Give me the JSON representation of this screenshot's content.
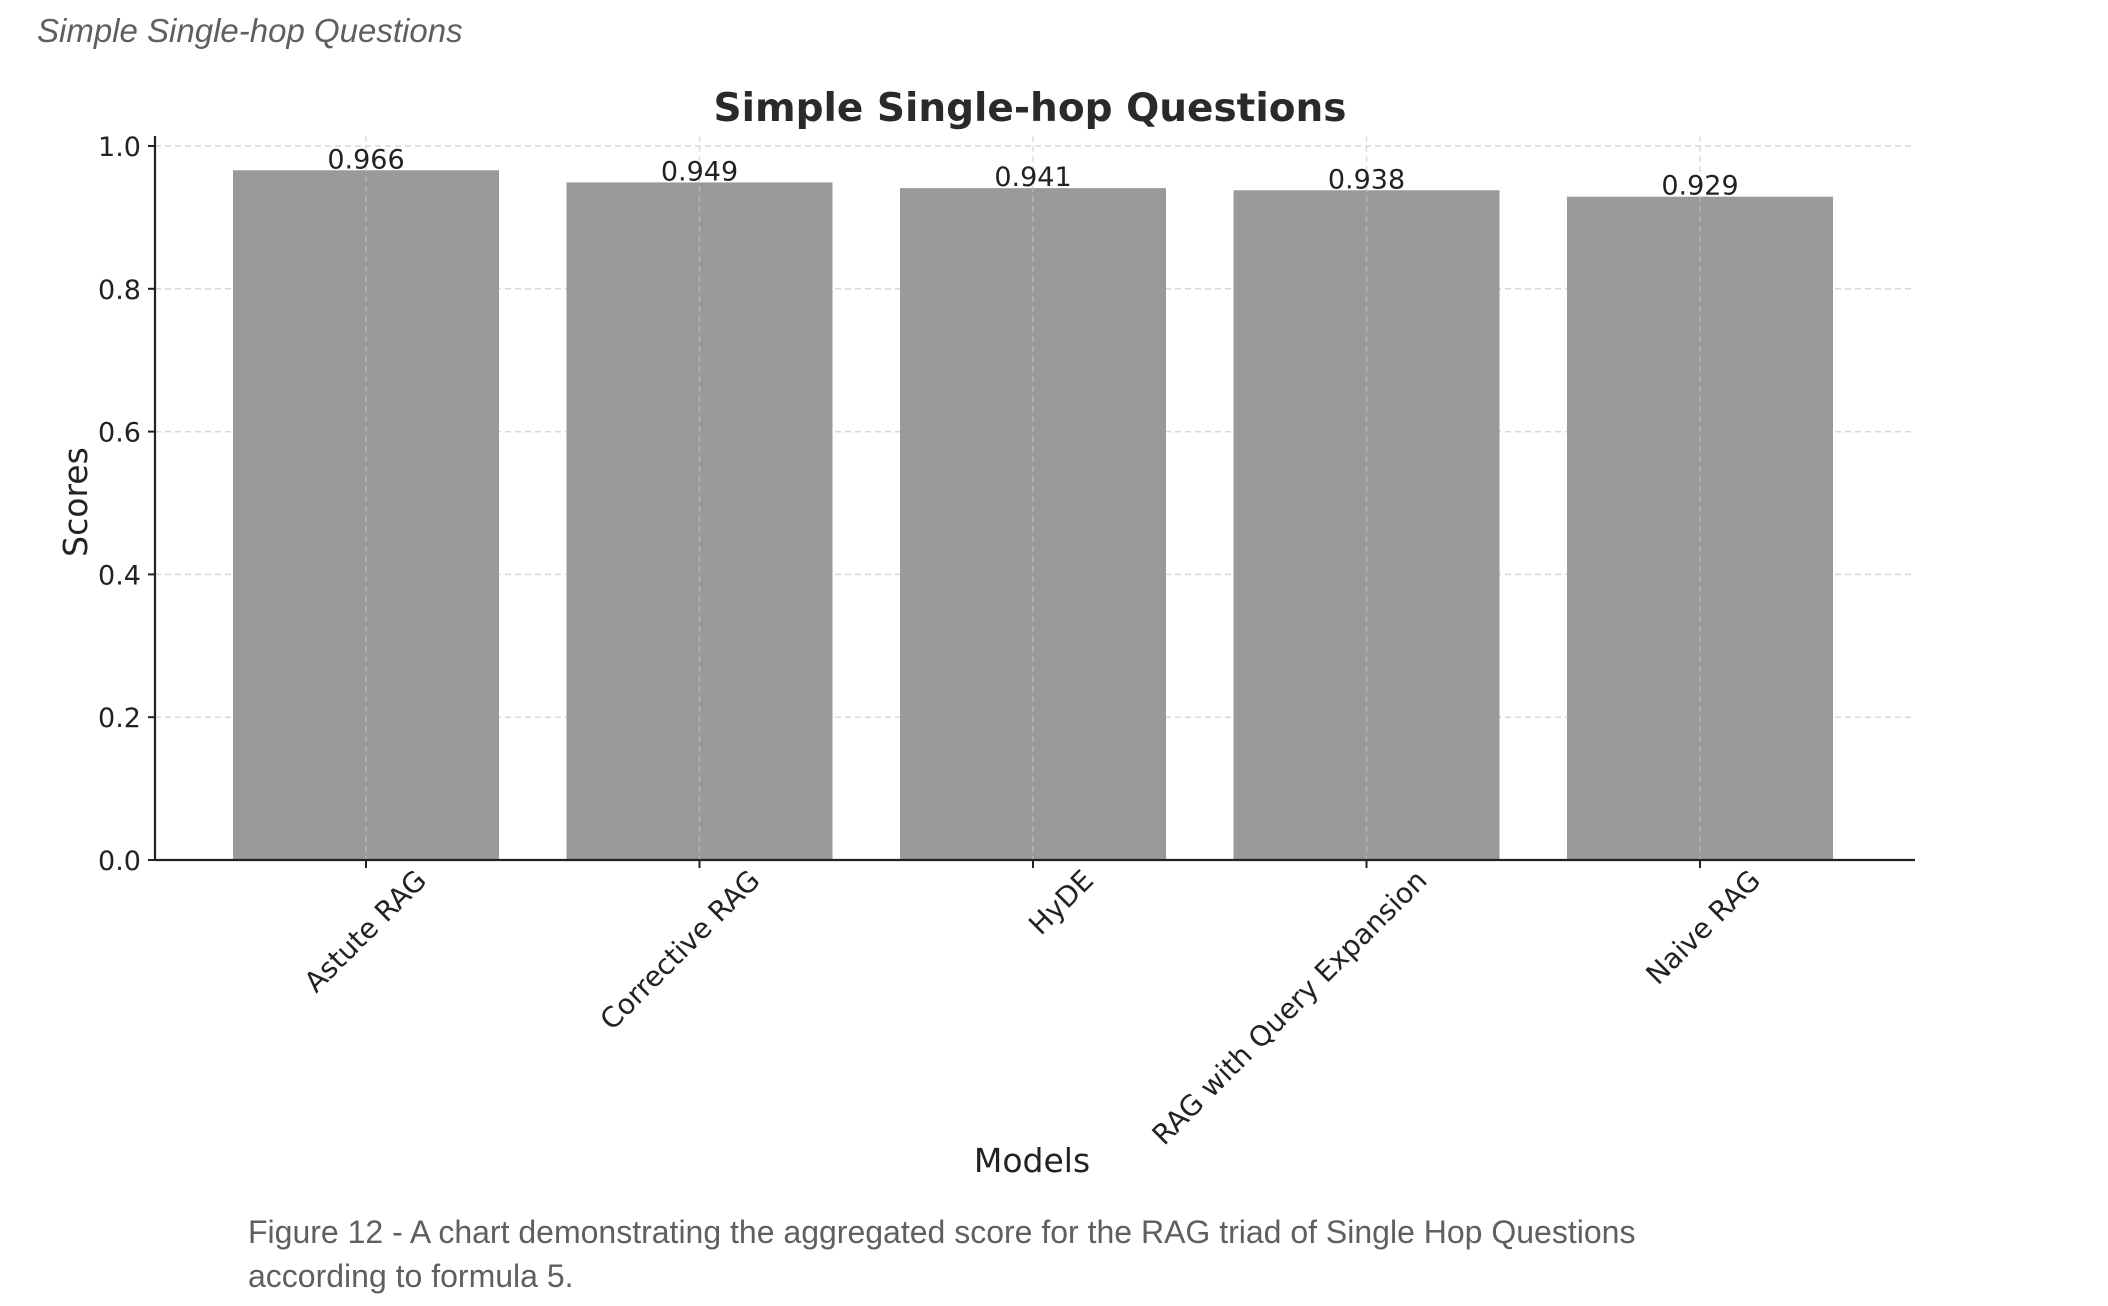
{
  "page_heading": "Simple Single-hop Questions",
  "caption": "Figure 12 - A chart demonstrating the aggregated score for the RAG triad of Single Hop Questions according to formula 5.",
  "chart_data": {
    "type": "bar",
    "title": "Simple Single-hop Questions",
    "xlabel": "Models",
    "ylabel": "Scores",
    "categories": [
      "Astute RAG",
      "Corrective RAG",
      "HyDE",
      "RAG with Query Expansion",
      "Naive RAG"
    ],
    "values": [
      0.966,
      0.949,
      0.941,
      0.938,
      0.929
    ],
    "value_labels": [
      "0.966",
      "0.949",
      "0.941",
      "0.938",
      "0.929"
    ],
    "ylim": [
      0,
      1.0
    ],
    "yticks": [
      0.0,
      0.2,
      0.4,
      0.6,
      0.8,
      1.0
    ],
    "ytick_labels": [
      "0.0",
      "0.2",
      "0.4",
      "0.6",
      "0.8",
      "1.0"
    ],
    "grid": true,
    "grid_style": "dashed",
    "x_tick_rotation_deg": 45,
    "bar_color": "#999999",
    "axis_color": "#222222",
    "grid_color": "#d9d9d9",
    "text_color": "#222222"
  }
}
